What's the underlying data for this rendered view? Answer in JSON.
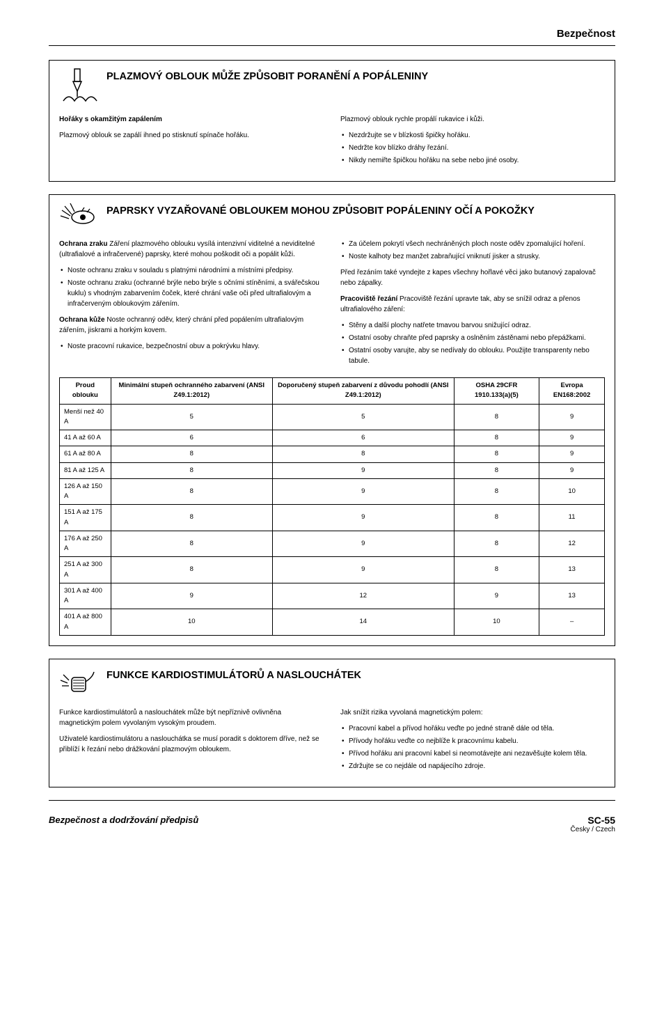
{
  "header": {
    "title": "Bezpečnost"
  },
  "section1": {
    "title": "PLAZMOVÝ OBLOUK MŮŽE ZPŮSOBIT PORANĚNÍ A POPÁLENINY",
    "left": {
      "heading": "Hořáky s okamžitým zapálením",
      "text": "Plazmový oblouk se zapálí ihned po stisknutí spínače hořáku."
    },
    "right": {
      "intro": "Plazmový oblouk rychle propálí rukavice i kůži.",
      "bullets": [
        "Nezdržujte se v blízkosti špičky hořáku.",
        "Nedržte kov blízko dráhy řezání.",
        "Nikdy nemiřte špičkou hořáku na sebe nebo jiné osoby."
      ]
    }
  },
  "section2": {
    "title": "PAPRSKY VYZAŘOVANÉ OBLOUKEM MOHOU ZPŮSOBIT POPÁLENINY OČÍ A POKOŽKY",
    "left": {
      "p1_label": "Ochrana zraku",
      "p1_text": " Záření plazmového oblouku vysílá intenzivní viditelné a neviditelné (ultrafialové a infračervené) paprsky, které mohou poškodit oči a popálit kůži.",
      "bullets1": [
        "Noste ochranu zraku v souladu s platnými národními a místními předpisy.",
        "Noste ochranu zraku (ochranné brýle nebo brýle s očními stíněními, a svářečskou kuklu) s vhodným zabarvením čoček, které chrání vaše oči před ultrafialovým a infračerveným obloukovým zářením."
      ],
      "p2_label": "Ochrana kůže",
      "p2_text": "  Noste ochranný oděv, který chrání před popálením ultrafialovým zářením, jiskrami a horkým kovem.",
      "bullets2": [
        "Noste pracovní rukavice, bezpečnostní obuv a pokrývku hlavy."
      ]
    },
    "right": {
      "bullets1": [
        "Za účelem pokrytí všech nechráněných ploch noste oděv zpomalující hoření.",
        "Noste kalhoty bez manžet zabraňující vniknutí jisker a strusky."
      ],
      "p1": "Před řezáním také vyndejte z kapes všechny hořlavé věci jako butanový zapalovač nebo zápalky.",
      "p2_label": "Pracoviště řezání",
      "p2_text": "   Pracoviště řezání upravte tak, aby se snížil odraz a přenos ultrafialového záření:",
      "bullets2": [
        "Stěny a další plochy natřete tmavou barvou snižující odraz.",
        "Ostatní osoby chraňte před paprsky a oslněním zástěnami nebo přepážkami.",
        "Ostatní osoby varujte, aby se nedívaly do oblouku. Použijte transparenty nebo tabule."
      ]
    },
    "table": {
      "headers": [
        "Proud oblouku",
        "Minimální stupeň ochranného zabarvení (ANSI Z49.1:2012)",
        "Doporučený stupeň zabarvení z důvodu pohodlí (ANSI Z49.1:2012)",
        "OSHA 29CFR 1910.133(a)(5)",
        "Evropa EN168:2002"
      ],
      "rows": [
        [
          "Menší než 40 A",
          "5",
          "5",
          "8",
          "9"
        ],
        [
          "41 A až 60 A",
          "6",
          "6",
          "8",
          "9"
        ],
        [
          "61 A až 80 A",
          "8",
          "8",
          "8",
          "9"
        ],
        [
          "81 A až 125 A",
          "8",
          "9",
          "8",
          "9"
        ],
        [
          "126 A až 150 A",
          "8",
          "9",
          "8",
          "10"
        ],
        [
          "151 A až 175 A",
          "8",
          "9",
          "8",
          "11"
        ],
        [
          "176 A až 250 A",
          "8",
          "9",
          "8",
          "12"
        ],
        [
          "251 A až 300 A",
          "8",
          "9",
          "8",
          "13"
        ],
        [
          "301 A až 400 A",
          "9",
          "12",
          "9",
          "13"
        ],
        [
          "401 A až 800 A",
          "10",
          "14",
          "10",
          "–"
        ]
      ]
    }
  },
  "section3": {
    "title": "FUNKCE KARDIOSTIMULÁTORŮ A NASLOUCHÁTEK",
    "left": {
      "p1": "Funkce kardiostimulátorů a naslouchátek může být nepříznivě ovlivněna magnetickým polem vyvolaným vysokým proudem.",
      "p2": "Uživatelé kardiostimulátoru a naslouchátka se musí poradit s doktorem dříve, než se přiblíží k řezání nebo drážkování plazmovým obloukem."
    },
    "right": {
      "intro": "Jak snížit rizika vyvolaná magnetickým polem:",
      "bullets": [
        "Pracovní kabel a přívod hořáku veďte po jedné straně dále od těla.",
        "Přívody hořáku veďte co nejblíže k pracovnímu kabelu.",
        "Přívod hořáku ani pracovní kabel si neomotávejte ani nezavěšujte kolem těla.",
        "Zdržujte se co nejdále od napájecího zdroje."
      ]
    }
  },
  "footer": {
    "left": "Bezpečnost a dodržování předpisů",
    "page": "SC-55",
    "lang": "Česky / Czech"
  }
}
